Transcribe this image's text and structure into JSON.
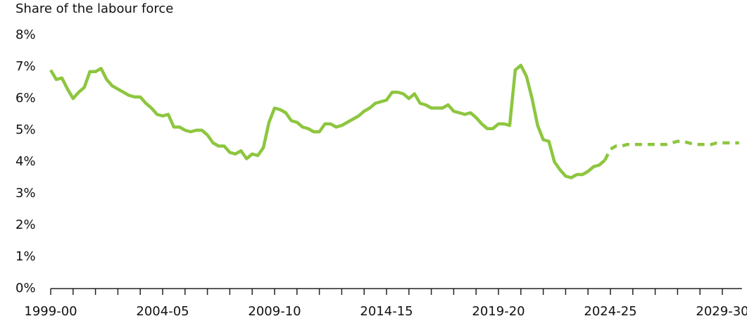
{
  "chart_data": {
    "type": "line",
    "title": "Share of the labour force",
    "categories": [
      "1999-00",
      null,
      null,
      null,
      null,
      null,
      null,
      null,
      null,
      null,
      null,
      null,
      null,
      null,
      null,
      null,
      null,
      null,
      null,
      null,
      "2004-05",
      null,
      null,
      null,
      null,
      null,
      null,
      null,
      null,
      null,
      null,
      null,
      null,
      null,
      null,
      null,
      null,
      null,
      null,
      null,
      "2009-10",
      null,
      null,
      null,
      null,
      null,
      null,
      null,
      null,
      null,
      null,
      null,
      null,
      null,
      null,
      null,
      null,
      null,
      null,
      null,
      "2014-15",
      null,
      null,
      null,
      null,
      null,
      null,
      null,
      null,
      null,
      null,
      null,
      null,
      null,
      null,
      null,
      null,
      null,
      null,
      null,
      "2019-20",
      null,
      null,
      null,
      null,
      null,
      null,
      null,
      null,
      null,
      null,
      null,
      null,
      null,
      null,
      null,
      null,
      null,
      null,
      null,
      "2024-25",
      null,
      null,
      null,
      null,
      null,
      null,
      null,
      null,
      null,
      null,
      null,
      null,
      null,
      null,
      null,
      null,
      null,
      null,
      null,
      "2029-30",
      null,
      null,
      null
    ],
    "series": [
      {
        "color": "#8dc63f",
        "style": "solid",
        "values": [
          6.9,
          6.6,
          6.65,
          6.3,
          6.0,
          6.2,
          6.35,
          6.85,
          6.85,
          6.95,
          6.6,
          6.4,
          6.3,
          6.2,
          6.1,
          6.05,
          6.05,
          5.85,
          5.7,
          5.5,
          5.45,
          5.5,
          5.1,
          5.1,
          5.0,
          4.95,
          5.0,
          5.0,
          4.85,
          4.6,
          4.5,
          4.5,
          4.3,
          4.25,
          4.35,
          4.1,
          4.25,
          4.2,
          4.45,
          5.25,
          5.7,
          5.65,
          5.55,
          5.3,
          5.25,
          5.1,
          5.05,
          4.95,
          4.95,
          5.2,
          5.2,
          5.1,
          5.15,
          5.25,
          5.35,
          5.45,
          5.6,
          5.7,
          5.85,
          5.9,
          5.95,
          6.2,
          6.2,
          6.15,
          6.0,
          6.15,
          5.85,
          5.8,
          5.7,
          5.7,
          5.7,
          5.8,
          5.6,
          5.55,
          5.5,
          5.55,
          5.4,
          5.2,
          5.05,
          5.05,
          5.2,
          5.2,
          5.15,
          6.9,
          7.05,
          6.7,
          6.0,
          5.15,
          4.7,
          4.65,
          4.0,
          3.75,
          3.55,
          3.5,
          3.6,
          3.6,
          3.7,
          3.85,
          3.9,
          4.05,
          null,
          null,
          null,
          null,
          null,
          null,
          null,
          null,
          null,
          null,
          null,
          null,
          null,
          null,
          null,
          null,
          null,
          null,
          null,
          null,
          null,
          null,
          null,
          null
        ]
      },
      {
        "color": "#8dc63f",
        "style": "dashed",
        "values": [
          null,
          null,
          null,
          null,
          null,
          null,
          null,
          null,
          null,
          null,
          null,
          null,
          null,
          null,
          null,
          null,
          null,
          null,
          null,
          null,
          null,
          null,
          null,
          null,
          null,
          null,
          null,
          null,
          null,
          null,
          null,
          null,
          null,
          null,
          null,
          null,
          null,
          null,
          null,
          null,
          null,
          null,
          null,
          null,
          null,
          null,
          null,
          null,
          null,
          null,
          null,
          null,
          null,
          null,
          null,
          null,
          null,
          null,
          null,
          null,
          null,
          null,
          null,
          null,
          null,
          null,
          null,
          null,
          null,
          null,
          null,
          null,
          null,
          null,
          null,
          null,
          null,
          null,
          null,
          null,
          null,
          null,
          null,
          null,
          null,
          null,
          null,
          null,
          null,
          null,
          null,
          null,
          null,
          null,
          null,
          null,
          null,
          null,
          null,
          4.05,
          4.4,
          4.5,
          4.5,
          4.55,
          4.55,
          4.55,
          4.55,
          4.55,
          4.55,
          4.55,
          4.55,
          4.6,
          4.65,
          4.65,
          4.6,
          4.55,
          4.55,
          4.55,
          4.55,
          4.6,
          4.6,
          4.6,
          4.6,
          4.6
        ]
      }
    ],
    "ylim": [
      0,
      8
    ],
    "yticks": [
      {
        "value": 0,
        "label": "0%"
      },
      {
        "value": 1,
        "label": "1%"
      },
      {
        "value": 2,
        "label": "2%"
      },
      {
        "value": 3,
        "label": "3%"
      },
      {
        "value": 4,
        "label": "4%"
      },
      {
        "value": 5,
        "label": "5%"
      },
      {
        "value": 6,
        "label": "6%"
      },
      {
        "value": 7,
        "label": "7%"
      },
      {
        "value": 8,
        "label": "8%"
      }
    ],
    "grid": false
  }
}
